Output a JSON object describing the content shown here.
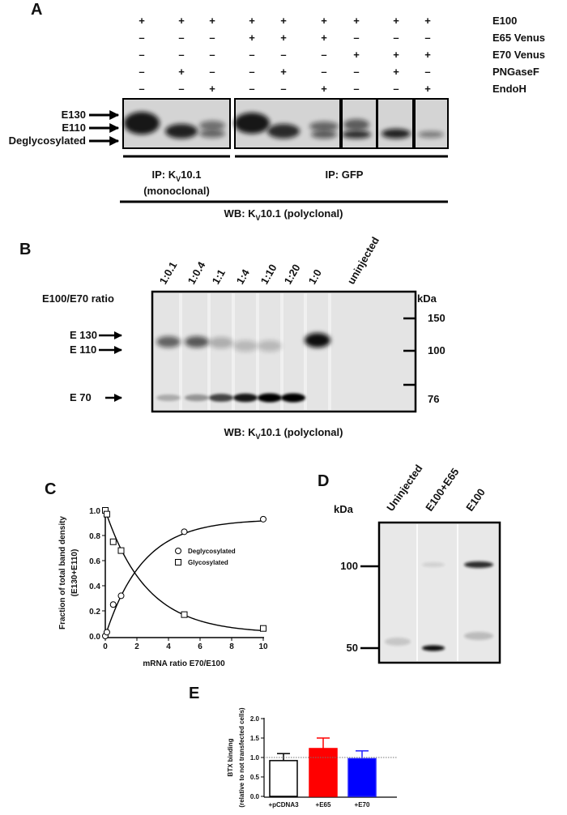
{
  "panels": {
    "A": {
      "letter": "A",
      "rows": [
        {
          "label": "E100",
          "signs": [
            "+",
            "+",
            "+",
            "+",
            "+",
            "+",
            "+",
            "+",
            "+"
          ]
        },
        {
          "label": "E65 Venus",
          "signs": [
            "–",
            "–",
            "–",
            "+",
            "+",
            "+",
            "–",
            "–",
            "–"
          ]
        },
        {
          "label": "E70 Venus",
          "signs": [
            "–",
            "–",
            "–",
            "–",
            "–",
            "–",
            "+",
            "+",
            "+"
          ]
        },
        {
          "label": "PNGaseF",
          "signs": [
            "–",
            "+",
            "–",
            "–",
            "+",
            "–",
            "–",
            "+",
            "–"
          ]
        },
        {
          "label": "EndoH",
          "signs": [
            "–",
            "–",
            "+",
            "–",
            "–",
            "+",
            "–",
            "–",
            "+"
          ]
        }
      ],
      "band_labels": [
        "E130",
        "E110",
        "Deglycosylated"
      ],
      "ip1": {
        "pre": "IP: K",
        "sub": "V",
        "post": "10.1",
        "line2": "(monoclonal)"
      },
      "ip2": "IP: GFP",
      "wb": {
        "pre": "WB: K",
        "sub": "V",
        "post": "10.1 (polyclonal)"
      }
    },
    "B": {
      "letter": "B",
      "ratio_label": "E100/E70 ratio",
      "lanes": [
        "1:0.1",
        "1:0.4",
        "1:1",
        "1:4",
        "1:10",
        "1:20",
        "1:0",
        "uninjected"
      ],
      "kda_label": "kDa",
      "markers": [
        "150",
        "100",
        "76"
      ],
      "band_labels": [
        "E 130",
        "E 110",
        "E 70"
      ],
      "wb": {
        "pre": "WB: K",
        "sub": "V",
        "post": "10.1 (polyclonal)"
      }
    },
    "D": {
      "letter": "D",
      "kda_label": "kDa",
      "lanes": [
        "Uninjected",
        "E100+E65",
        "E100"
      ],
      "markers": [
        "100",
        "50"
      ]
    },
    "C": {
      "letter": "C"
    },
    "E": {
      "letter": "E"
    }
  },
  "chart_data": [
    {
      "panel": "C",
      "type": "scatter",
      "xlabel": "mRNA ratio  E70/E100",
      "ylabel": "Fraction of total band density",
      "ylabel2": "(E130+E110)",
      "xlim": [
        0,
        10
      ],
      "ylim": [
        0,
        1
      ],
      "xticks": [
        "0",
        "2",
        "4",
        "6",
        "8",
        "10"
      ],
      "yticks": [
        "0.0",
        "0.2",
        "0.4",
        "0.6",
        "0.8",
        "1.0"
      ],
      "grid": false,
      "legend_position": "center-right",
      "series": [
        {
          "name": "Deglycosylated",
          "marker": "circle",
          "x": [
            0,
            0.1,
            0.5,
            1,
            5,
            10
          ],
          "y": [
            0.0,
            0.03,
            0.25,
            0.32,
            0.83,
            0.93
          ],
          "fit": "exponential rise"
        },
        {
          "name": "Glycosylated",
          "marker": "square",
          "x": [
            0,
            0.1,
            0.5,
            1,
            5,
            10
          ],
          "y": [
            1.0,
            0.97,
            0.75,
            0.68,
            0.17,
            0.06
          ],
          "fit": "exponential decay"
        }
      ]
    },
    {
      "panel": "E",
      "type": "bar",
      "ylabel": "BTX binding",
      "ylabel2": "(relative to not transfected cells)",
      "categories": [
        "+pCDNA3",
        "+E65",
        "+E70"
      ],
      "values": [
        0.92,
        1.23,
        0.97
      ],
      "error_upper": [
        1.1,
        1.5,
        1.17
      ],
      "colors": [
        "#ffffff",
        "#ff0000",
        "#0000ff"
      ],
      "edge_colors": [
        "#000000",
        "#ff0000",
        "#2222ff"
      ],
      "reference_line": 1.0,
      "ylim": [
        0,
        2
      ],
      "yticks": [
        "0.0",
        "0.5",
        "1.0",
        "1.5",
        "2.0"
      ]
    }
  ]
}
